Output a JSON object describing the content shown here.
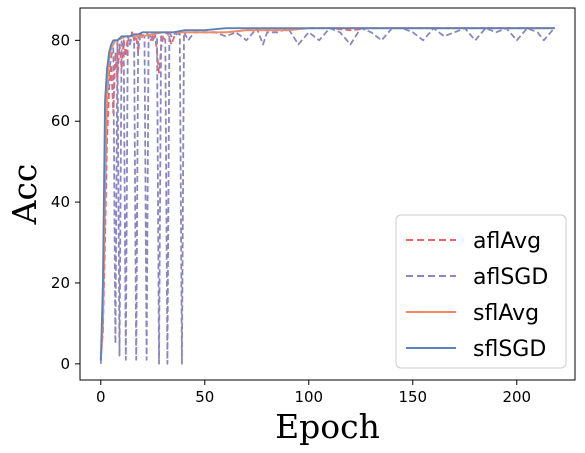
{
  "chart_data": {
    "type": "line",
    "title": "",
    "xlabel": "Epoch",
    "ylabel": "Acc",
    "xlim": [
      -10,
      228
    ],
    "ylim": [
      -4,
      88
    ],
    "xticks": [
      0,
      50,
      100,
      150,
      200
    ],
    "yticks": [
      0,
      20,
      40,
      60,
      80
    ],
    "grid": false,
    "legend": {
      "placement": "bottom-right",
      "entries": [
        "aflAvg",
        "aflSGD",
        "sflAvg",
        "sflSGD"
      ]
    },
    "series": [
      {
        "name": "aflAvg",
        "color": "#e8636a",
        "style": "dashed",
        "x": [
          0,
          1,
          2,
          3,
          4,
          5,
          6,
          7,
          8,
          9,
          10,
          11,
          12,
          13,
          14,
          15,
          16,
          17,
          18,
          19,
          20,
          22,
          24,
          26,
          28,
          29,
          30,
          32,
          34,
          36,
          38,
          40,
          45,
          50,
          60,
          70,
          80,
          90,
          100,
          110,
          120,
          130,
          140,
          150,
          160,
          170,
          180,
          190,
          200,
          210,
          218
        ],
        "y": [
          1,
          8,
          30,
          55,
          68,
          74,
          62,
          77,
          70,
          79,
          73,
          80,
          76,
          81,
          79,
          82,
          80,
          81,
          77,
          82,
          81,
          82,
          80,
          82,
          72,
          78,
          81,
          82,
          79,
          82,
          82,
          82,
          82,
          82,
          82,
          82.5,
          82.5,
          82.5,
          83,
          83,
          82.5,
          83,
          83,
          83,
          83,
          83,
          83,
          83,
          83,
          83,
          83
        ]
      },
      {
        "name": "aflSGD",
        "color": "#8a86bf",
        "style": "dashed",
        "x": [
          0,
          1,
          2,
          3,
          4,
          5,
          6,
          7,
          8,
          9,
          10,
          11,
          12,
          13,
          14,
          15,
          16,
          17,
          18,
          19,
          20,
          21,
          22,
          23,
          24,
          25,
          26,
          27,
          28,
          29,
          30,
          31,
          32,
          33,
          34,
          35,
          36,
          37,
          38,
          39,
          40,
          42,
          45,
          50,
          55,
          60,
          65,
          70,
          75,
          78,
          80,
          85,
          90,
          95,
          100,
          105,
          110,
          115,
          120,
          125,
          130,
          135,
          140,
          145,
          150,
          155,
          160,
          165,
          170,
          175,
          180,
          185,
          190,
          195,
          200,
          205,
          210,
          213,
          218
        ],
        "y": [
          0,
          10,
          40,
          66,
          72,
          76,
          78,
          5,
          80,
          2,
          80,
          79,
          1,
          81,
          79,
          81,
          81,
          1,
          81,
          80,
          81,
          81,
          1,
          81,
          81,
          80,
          81,
          81,
          0,
          81,
          81,
          80,
          0,
          82,
          81,
          81,
          82,
          81,
          82,
          0,
          82,
          80,
          82,
          82,
          82,
          81,
          82,
          80,
          83,
          79,
          82,
          82,
          83,
          79,
          82,
          80,
          83,
          82,
          79,
          83,
          82,
          80,
          83,
          83,
          82,
          80,
          83,
          81,
          82,
          83,
          80,
          83,
          82,
          83,
          80,
          83,
          82,
          80,
          83
        ]
      },
      {
        "name": "sflAvg",
        "color": "#f08a67",
        "style": "solid",
        "x": [
          0,
          1,
          2,
          3,
          4,
          5,
          6,
          7,
          8,
          10,
          12,
          14,
          16,
          18,
          20,
          25,
          30,
          35,
          40,
          50,
          60,
          70,
          80,
          90,
          100,
          110,
          120,
          130,
          140,
          150,
          160,
          170,
          180,
          190,
          200,
          210,
          218
        ],
        "y": [
          1,
          12,
          45,
          68,
          75,
          78,
          79,
          80,
          80,
          80.5,
          81,
          81,
          81,
          81,
          81,
          81.5,
          82,
          82,
          82,
          82,
          82,
          82.5,
          82.5,
          82.5,
          83,
          83,
          83,
          83,
          83,
          83,
          83,
          83,
          83,
          83,
          83,
          83,
          83
        ]
      },
      {
        "name": "sflSGD",
        "color": "#5b82b8",
        "style": "solid",
        "x": [
          0,
          1,
          2,
          3,
          4,
          5,
          6,
          7,
          8,
          10,
          12,
          14,
          16,
          18,
          20,
          25,
          30,
          35,
          40,
          50,
          60,
          70,
          80,
          90,
          100,
          110,
          120,
          130,
          140,
          150,
          160,
          170,
          180,
          190,
          200,
          210,
          218
        ],
        "y": [
          1,
          20,
          65,
          73,
          77,
          79,
          80,
          80,
          80,
          81,
          81,
          81,
          81.5,
          81.5,
          82,
          82,
          82,
          82,
          82.5,
          82.5,
          83,
          83,
          83,
          83,
          83,
          83,
          83,
          83,
          83,
          83,
          83,
          83,
          83,
          83,
          83,
          83,
          83
        ]
      }
    ]
  }
}
